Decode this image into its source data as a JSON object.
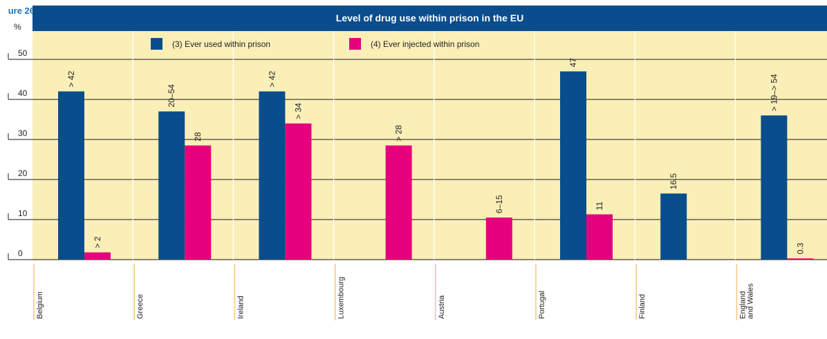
{
  "figure_label": "ure 26",
  "unit_label": "%",
  "colors": {
    "header_bg": "#0a4d8c",
    "plot_bg": "#fbefb8",
    "series_ever_used": "#0a4d8c",
    "series_injected": "#e5007e",
    "separator": "#f5c97a"
  },
  "chart_data": {
    "type": "bar",
    "title": "Level of drug use within prison in the EU",
    "ylabel": "%",
    "ylim": [
      0,
      50
    ],
    "yticks": [
      0,
      10,
      20,
      30,
      40,
      50
    ],
    "grid": true,
    "legend_position": "top",
    "categories": [
      [
        "Belgium"
      ],
      [
        "Greece"
      ],
      [
        "Ireland"
      ],
      [
        "Luxembourg"
      ],
      [
        "Austria"
      ],
      [
        "Portugal"
      ],
      [
        "Finland"
      ],
      [
        "England",
        "and Wales"
      ]
    ],
    "series": [
      {
        "name": "(3) Ever used within prison",
        "color": "#0a4d8c",
        "values": [
          42,
          37,
          42,
          null,
          null,
          47,
          16.5,
          36
        ],
        "labels": [
          "> 42",
          "20–54",
          "> 42",
          "",
          "",
          "47",
          "16.5",
          "> 19–> 54"
        ]
      },
      {
        "name": "(4) Ever injected within prison",
        "color": "#e5007e",
        "values": [
          1.8,
          28.5,
          34,
          28.5,
          10.5,
          11.3,
          null,
          0.3
        ],
        "labels": [
          "> 2",
          "28",
          "> 34",
          "> 28",
          "6–15",
          "11",
          "",
          "0.3"
        ]
      }
    ]
  }
}
